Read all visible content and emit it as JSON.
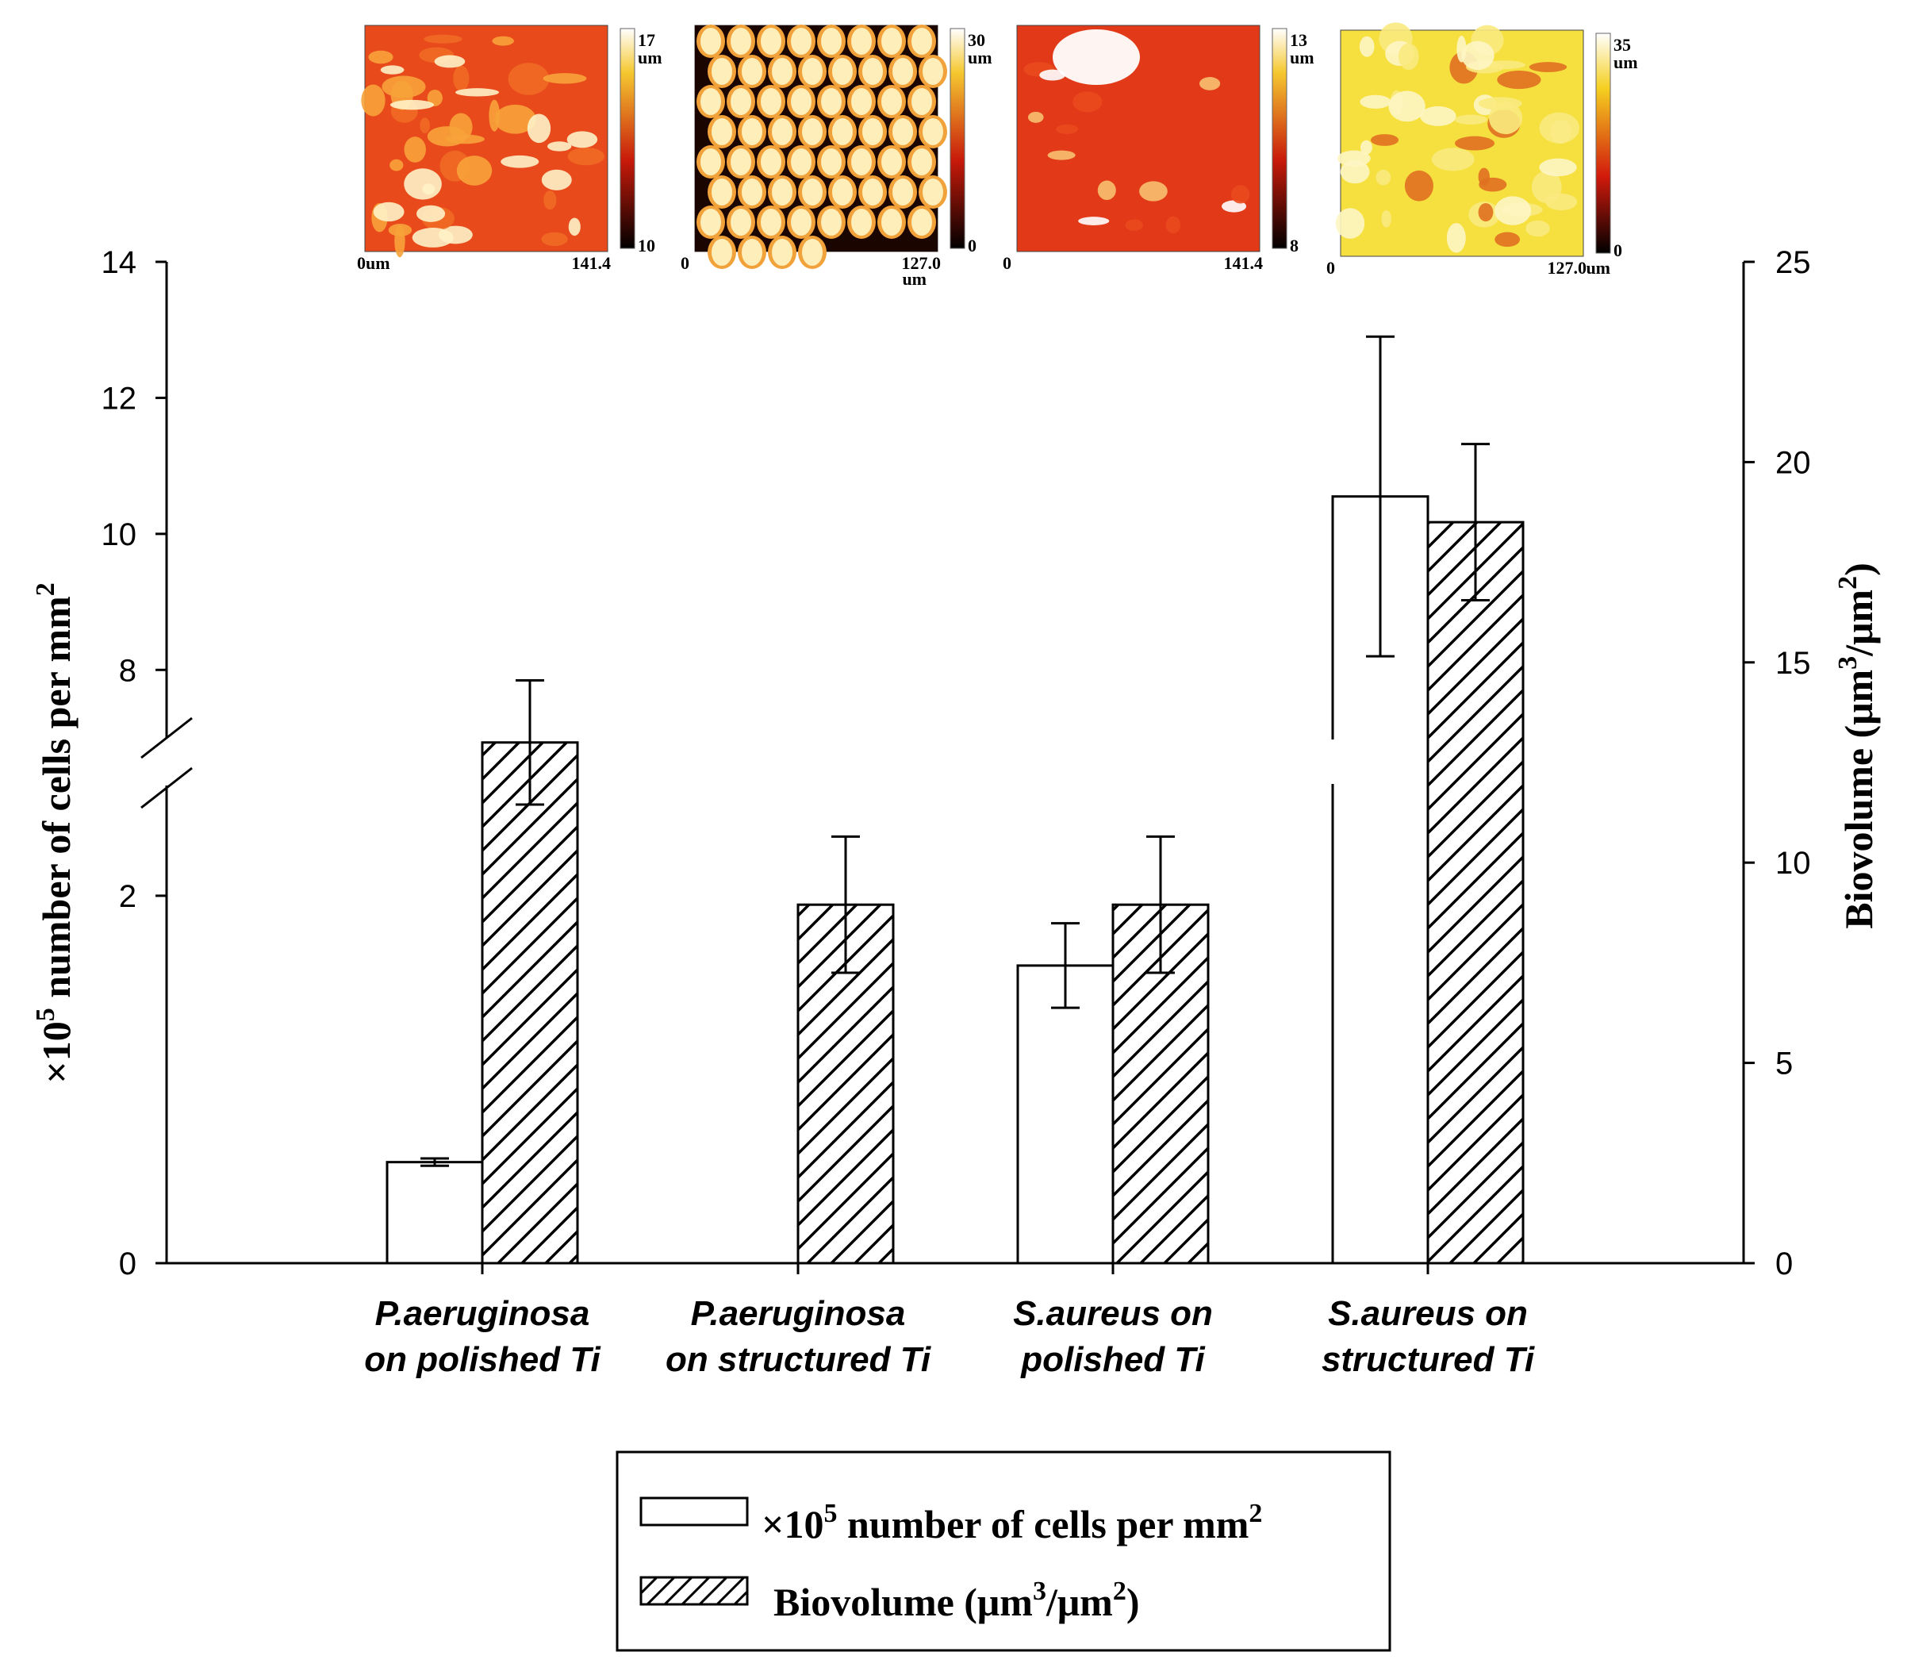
{
  "chart_data": {
    "type": "bar",
    "categories": [
      [
        "P.aeruginosa",
        "on polished Ti"
      ],
      [
        "P.aeruginosa",
        "on structured Ti"
      ],
      [
        "S.aureus on",
        "polished Ti"
      ],
      [
        "S.aureus  on",
        "structured Ti"
      ]
    ],
    "series": [
      {
        "name": "cells",
        "axis": "left",
        "pattern": "none",
        "values": [
          0.55,
          0,
          1.62,
          10.55
        ],
        "errors": [
          0.02,
          0,
          0.23,
          2.35
        ]
      },
      {
        "name": "biovolume",
        "axis": "right",
        "pattern": "hatch",
        "values": [
          13.0,
          8.95,
          8.95,
          18.5
        ],
        "errors": [
          1.55,
          1.7,
          1.7,
          1.95
        ]
      }
    ],
    "left_axis": {
      "title_prefix": "×10",
      "title_exp": "5",
      "title_main": " number of cells per mm",
      "title_exp2": "2",
      "ticks": [
        "0",
        "2",
        "8",
        "10",
        "12",
        "14"
      ],
      "break_between": [
        2,
        8
      ],
      "lower_range": [
        0,
        2.6
      ],
      "upper_range": [
        7,
        14
      ]
    },
    "right_axis": {
      "title_main": "Biovolume (μm",
      "title_exp": "3",
      "title_mid": "/μm",
      "title_exp2": "2",
      "title_end": ")",
      "ticks": [
        "0",
        "5",
        "10",
        "15",
        "20",
        "25"
      ],
      "range": [
        0,
        25
      ]
    },
    "legend": {
      "cells_prefix": "×10",
      "cells_exp": "5",
      "cells_main": " number of cells per mm",
      "cells_exp2": "2",
      "bio_main": "Biovolume (μm",
      "bio_exp": "3",
      "bio_mid": "/μm",
      "bio_exp2": "2",
      "bio_end": ")"
    },
    "maps": [
      {
        "top": "17",
        "unit": "um",
        "bottom": "10",
        "x_left": "0um",
        "x_right": "141.4",
        "x_unit": "",
        "colors": [
          "#e84a1c",
          "#f06a24",
          "#f7a23a",
          "#fff2c8"
        ]
      },
      {
        "top": "30",
        "unit": "um",
        "bottom": "0",
        "x_left": "0",
        "x_right": "127.0",
        "x_unit": "um",
        "colors": [
          "#1a0500",
          "#b02a10",
          "#f2a23a",
          "#fff6c8"
        ]
      },
      {
        "top": "13",
        "unit": "um",
        "bottom": "8",
        "x_left": "0",
        "x_right": "141.4",
        "x_unit": "",
        "colors": [
          "#e23a18",
          "#ea4a1e",
          "#f8c070",
          "#ffffff"
        ]
      },
      {
        "top": "35",
        "unit": "um",
        "bottom": "0",
        "x_left": "0",
        "x_right": "127.0",
        "x_unit": "um",
        "colors": [
          "#f6e040",
          "#f9ea80",
          "#fdf6c4",
          "#e07020"
        ]
      }
    ]
  }
}
